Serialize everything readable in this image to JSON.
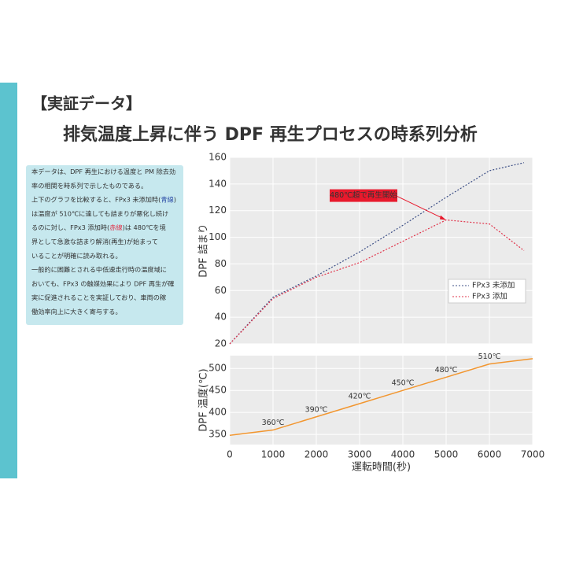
{
  "header": {
    "title": "【実証データ】",
    "subtitle": "排気温度上昇に伴う DPF 再生プロセスの時系列分析"
  },
  "note": {
    "lines": [
      [
        "本データは、DPF 再生における温度と PM 除去効"
      ],
      [
        "率の相関を時系列で示したものである。"
      ],
      [
        "上下のグラフを比較すると、FPx3 未添加時(",
        {
          "text": "青線",
          "color": "#2f4fa8"
        },
        ")"
      ],
      [
        "は温度が 510℃に達しても詰まりが悪化し続け"
      ],
      [
        "るのに対し、FPx3 添加時(",
        {
          "text": "赤線",
          "color": "#e0334a"
        },
        ")は 480℃を境"
      ],
      [
        "界として急激な詰まり解消(再生)が始まって"
      ],
      [
        "いることが明確に読み取れる。"
      ],
      [
        "一般的に困難とされる中低速走行時の温度域に"
      ],
      [
        "おいても、FPx3 の触媒効果により DPF 再生が確"
      ],
      [
        "実に促進されることを実証しており、車両の稼"
      ],
      [
        "働効率向上に大きく寄与する。"
      ]
    ]
  },
  "chart_data": [
    {
      "type": "line",
      "ylabel": "DPF 詰まり",
      "x": [
        0,
        1000,
        2000,
        3000,
        4000,
        5000,
        6000,
        6800
      ],
      "series": [
        {
          "name": "FPx3 未添加",
          "color": "#3d4f86",
          "values": [
            20,
            55,
            71,
            89,
            109,
            130,
            150,
            156
          ]
        },
        {
          "name": "FPx3 添加",
          "color": "#e0334a",
          "values": [
            20,
            54,
            70,
            81,
            97,
            113,
            110,
            90
          ]
        }
      ],
      "xlim": [
        0,
        7000
      ],
      "xticks": [
        0,
        1000,
        2000,
        3000,
        4000,
        5000,
        6000,
        7000
      ],
      "ylim": [
        20,
        160
      ],
      "yticks": [
        20,
        40,
        60,
        80,
        100,
        120,
        140,
        160
      ],
      "grid": true,
      "legend": "lower-right",
      "annotation": {
        "text": "480℃超で再生開始",
        "x": 5000,
        "y": 113,
        "color": "#e8192c"
      }
    },
    {
      "type": "line",
      "ylabel": "DPF 温度(℃)",
      "xlabel": "運転時間(秒)",
      "x": [
        0,
        1000,
        2000,
        3000,
        4000,
        5000,
        6000,
        7000
      ],
      "series": [
        {
          "color": "#f2962f",
          "values": [
            348,
            360,
            390,
            420,
            450,
            480,
            510,
            522
          ],
          "value_labels": [
            null,
            "360℃",
            "390℃",
            "420℃",
            "450℃",
            "480℃",
            "510℃",
            null
          ]
        }
      ],
      "xlim": [
        0,
        7000
      ],
      "xticks": [
        0,
        1000,
        2000,
        3000,
        4000,
        5000,
        6000,
        7000
      ],
      "ylim": [
        327,
        529
      ],
      "yticks": [
        350,
        400,
        450,
        500
      ],
      "grid": true
    }
  ]
}
